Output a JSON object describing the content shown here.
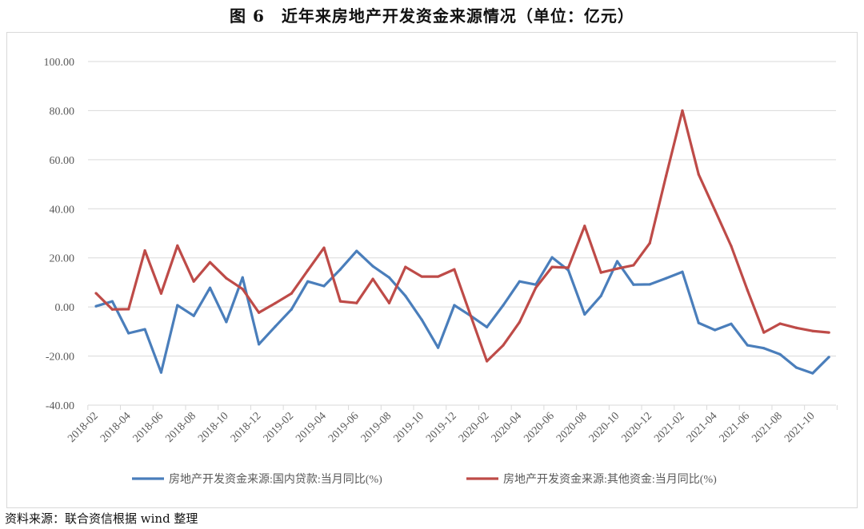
{
  "title": "图 6　近年来房地产开发资金来源情况（单位：亿元）",
  "source": "资料来源：联合资信根据 wind 整理",
  "chart_data": {
    "type": "line",
    "title": "图 6　近年来房地产开发资金来源情况（单位：亿元）",
    "xlabel": "",
    "ylabel": "",
    "ylim": [
      -40,
      100
    ],
    "yticks": [
      "100.00",
      "80.00",
      "60.00",
      "40.00",
      "20.00",
      "0.00",
      "-20.00",
      "-40.00"
    ],
    "ytick_values": [
      100,
      80,
      60,
      40,
      20,
      0,
      -20,
      -40
    ],
    "grid": true,
    "legend_position": "bottom",
    "x": [
      "2018-02",
      "2018-03",
      "2018-04",
      "2018-05",
      "2018-06",
      "2018-07",
      "2018-08",
      "2018-09",
      "2018-10",
      "2018-11",
      "2018-12",
      "2019-01",
      "2019-02",
      "2019-03",
      "2019-04",
      "2019-05",
      "2019-06",
      "2019-07",
      "2019-08",
      "2019-09",
      "2019-10",
      "2019-11",
      "2019-12",
      "2020-01",
      "2020-02",
      "2020-03",
      "2020-04",
      "2020-05",
      "2020-06",
      "2020-07",
      "2020-08",
      "2020-09",
      "2020-10",
      "2020-11",
      "2020-12",
      "2021-01",
      "2021-02",
      "2021-03",
      "2021-04",
      "2021-05",
      "2021-06",
      "2021-07",
      "2021-08",
      "2021-09",
      "2021-10",
      "2021-11"
    ],
    "xtick_labels": [
      "2018-02",
      "2018-04",
      "2018-06",
      "2018-08",
      "2018-10",
      "2018-12",
      "2019-02",
      "2019-04",
      "2019-06",
      "2019-08",
      "2019-10",
      "2019-12",
      "2020-02",
      "2020-04",
      "2020-06",
      "2020-08",
      "2020-10",
      "2020-12",
      "2021-02",
      "2021-04",
      "2021-06",
      "2021-08",
      "2021-10"
    ],
    "series": [
      {
        "name": "房地产开发资金来源:国内贷款:当月同比(%)",
        "color": "#4a7ebb",
        "values": [
          0.3,
          2.3,
          -10.7,
          -9.1,
          -26.7,
          0.7,
          -3.6,
          7.8,
          -6.1,
          12.0,
          -15.2,
          -8.0,
          -1.0,
          10.4,
          8.5,
          15.3,
          22.8,
          16.6,
          12.0,
          4.5,
          -5.2,
          -16.6,
          0.7,
          -3.6,
          -8.2,
          0.7,
          10.4,
          9.1,
          20.2,
          15.0,
          -3.0,
          4.5,
          18.6,
          9.1,
          9.2,
          11.7,
          14.3,
          -6.5,
          -9.4,
          -6.9,
          -15.6,
          -16.8,
          -19.3,
          -24.7,
          -27.0,
          -20.4
        ]
      },
      {
        "name": "房地产开发资金来源:其他资金:当月同比(%)",
        "color": "#be4b48",
        "values": [
          5.6,
          -1.0,
          -0.9,
          23.0,
          5.5,
          25.0,
          10.4,
          18.2,
          11.7,
          7.3,
          -2.3,
          1.5,
          5.5,
          14.9,
          24.1,
          2.3,
          1.6,
          11.4,
          1.6,
          16.3,
          12.4,
          12.4,
          15.3,
          -3.5,
          -22.1,
          -15.6,
          -6.2,
          7.8,
          16.3,
          16.0,
          33.0,
          14.0,
          15.6,
          17.0,
          26.0,
          53.4,
          80.0,
          54.0,
          39.4,
          24.8,
          6.8,
          -10.4,
          -6.8,
          -8.5,
          -9.8,
          -10.4
        ]
      }
    ]
  },
  "colors": {
    "grid": "#d9d9d9",
    "axis_text": "#595959"
  }
}
